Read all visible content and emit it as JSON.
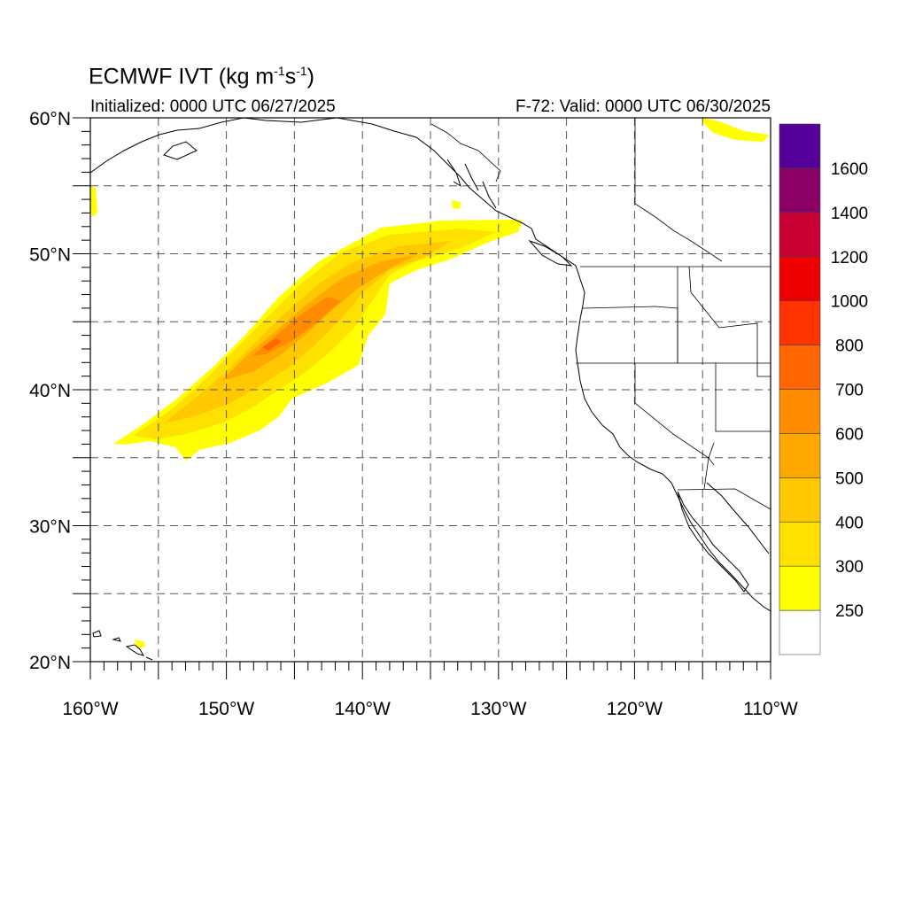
{
  "header": {
    "title_main": "ECMWF IVT (kg m",
    "title_sup1": "-1",
    "title_mid": "s",
    "title_sup2": "-1",
    "title_end": ")",
    "initialized": "Initialized: 0000 UTC 06/27/2025",
    "valid": "F-72: Valid: 0000 UTC 06/30/2025"
  },
  "map": {
    "lon_range": [
      -160,
      -110
    ],
    "lat_range": [
      20,
      60
    ],
    "lat_labels": [
      "60°N",
      "50°N",
      "40°N",
      "30°N",
      "20°N"
    ],
    "lon_labels": [
      "160°W",
      "150°W",
      "140°W",
      "130°W",
      "120°W",
      "110°W"
    ],
    "grid": "dashed every 5 degrees",
    "feature": "atmospheric river extending from about 36N 158W northeast to about 52N 128W, peak near 43N 147W"
  },
  "colorbar": {
    "levels": [
      "250",
      "300",
      "400",
      "500",
      "600",
      "700",
      "800",
      "1000",
      "1200",
      "1400",
      "1600"
    ],
    "colors": [
      "#ffff00",
      "#ffe100",
      "#ffc800",
      "#ffa800",
      "#ff8c00",
      "#ff6600",
      "#ff3300",
      "#ee0000",
      "#c80033",
      "#8b0066",
      "#550099"
    ]
  }
}
